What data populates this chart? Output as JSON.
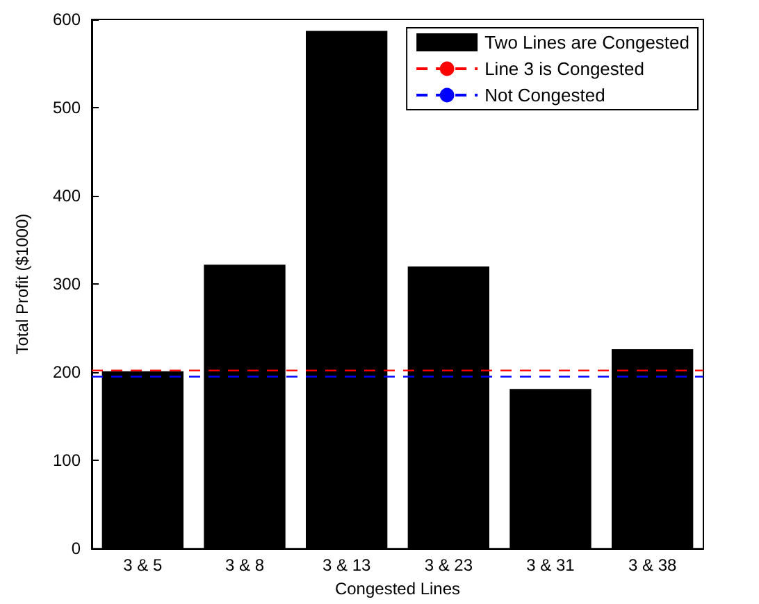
{
  "chart_data": {
    "type": "bar",
    "xlabel": "Congested Lines",
    "ylabel": "Total Profit ($1000)",
    "categories": [
      "3 & 5",
      "3 & 8",
      "3 & 13",
      "3 & 23",
      "3 & 31",
      "3 & 38"
    ],
    "series": [
      {
        "name": "Two Lines are Congested",
        "color": "#000000",
        "values": [
          201,
          322,
          587,
          320,
          181,
          226
        ]
      }
    ],
    "ref_lines": [
      {
        "axis": "y",
        "value": 202,
        "label": "Line 3 is Congested",
        "color": "#ff0000",
        "line_style": "dashed"
      },
      {
        "axis": "y",
        "value": 195,
        "label": "Not Congested",
        "color": "#0000ff",
        "line_style": "dashed"
      }
    ],
    "ylim": [
      0,
      600
    ],
    "yticks": [
      0,
      100,
      200,
      300,
      400,
      500,
      600
    ],
    "grid": false,
    "legend": "top right"
  }
}
